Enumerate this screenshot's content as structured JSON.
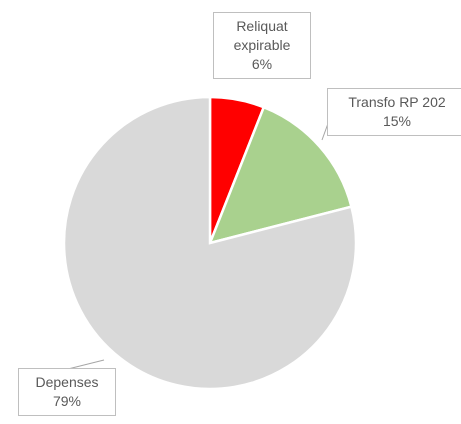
{
  "chart_data": {
    "type": "pie",
    "categories": [
      "Reliquat expirable",
      "Transfo RP 202",
      "Depenses"
    ],
    "values": [
      6,
      15,
      79
    ],
    "value_labels": [
      "6%",
      "15%",
      "79%"
    ],
    "colors": [
      "#ff0000",
      "#a9d18e",
      "#d9d9d9"
    ]
  }
}
